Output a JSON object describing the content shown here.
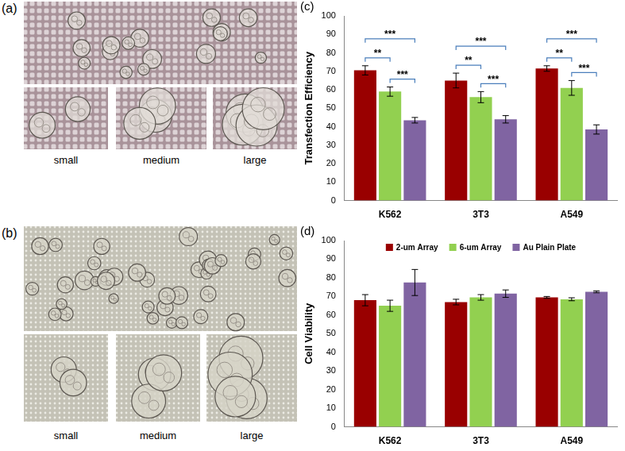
{
  "panels": [
    {
      "label": "(a)",
      "captions": [
        "small",
        "medium",
        "large"
      ]
    },
    {
      "label": "(b)",
      "captions": [
        "small",
        "medium",
        "large"
      ]
    }
  ],
  "chart_data": [
    {
      "type": "bar",
      "title": "(c)",
      "y_label": "Transfection Efficiency",
      "categories": [
        "K562",
        "3T3",
        "A549"
      ],
      "series": [
        {
          "color": "#990000",
          "values": [
            70.5,
            65,
            71.5
          ],
          "errors": [
            2.5,
            4,
            1.5
          ]
        },
        {
          "color": "#92D050",
          "values": [
            59,
            56,
            61
          ],
          "errors": [
            2.5,
            3,
            4
          ]
        },
        {
          "color": "#8064A2",
          "values": [
            43.5,
            44,
            38.5
          ],
          "errors": [
            1.5,
            2,
            2.5
          ]
        }
      ],
      "ylim": [
        0,
        100
      ],
      "yticks": [
        0,
        10,
        20,
        30,
        40,
        50,
        60,
        70,
        80,
        90,
        100
      ],
      "grid": false,
      "significance": [
        {
          "category": "K562",
          "from": 0,
          "to": 1,
          "label": "**"
        },
        {
          "category": "K562",
          "from": 0,
          "to": 2,
          "label": "***"
        },
        {
          "category": "K562",
          "from": 1,
          "to": 2,
          "label": "***"
        },
        {
          "category": "3T3",
          "from": 0,
          "to": 1,
          "label": "**"
        },
        {
          "category": "3T3",
          "from": 0,
          "to": 2,
          "label": "***"
        },
        {
          "category": "3T3",
          "from": 1,
          "to": 2,
          "label": "***"
        },
        {
          "category": "A549",
          "from": 0,
          "to": 1,
          "label": "**"
        },
        {
          "category": "A549",
          "from": 0,
          "to": 2,
          "label": "***"
        },
        {
          "category": "A549",
          "from": 1,
          "to": 2,
          "label": "***"
        }
      ]
    },
    {
      "type": "bar",
      "title": "(d)",
      "y_label": "Cell Viability",
      "categories": [
        "K562",
        "3T3",
        "A549"
      ],
      "series": [
        {
          "name": "2-um Array",
          "color": "#990000",
          "values": [
            68,
            67,
            69.5
          ],
          "errors": [
            3,
            1.5,
            0.5
          ]
        },
        {
          "name": "6-um Array",
          "color": "#92D050",
          "values": [
            65,
            69.5,
            68.5
          ],
          "errors": [
            3,
            1.5,
            0.8
          ]
        },
        {
          "name": "Au Plain Plate",
          "color": "#8064A2",
          "values": [
            77.5,
            71.5,
            72.5
          ],
          "errors": [
            7,
            2,
            0.5
          ]
        }
      ],
      "ylim": [
        0,
        100
      ],
      "yticks": [
        0,
        10,
        20,
        30,
        40,
        50,
        60,
        70,
        80,
        90,
        100
      ],
      "grid": false,
      "legend": "top"
    }
  ]
}
